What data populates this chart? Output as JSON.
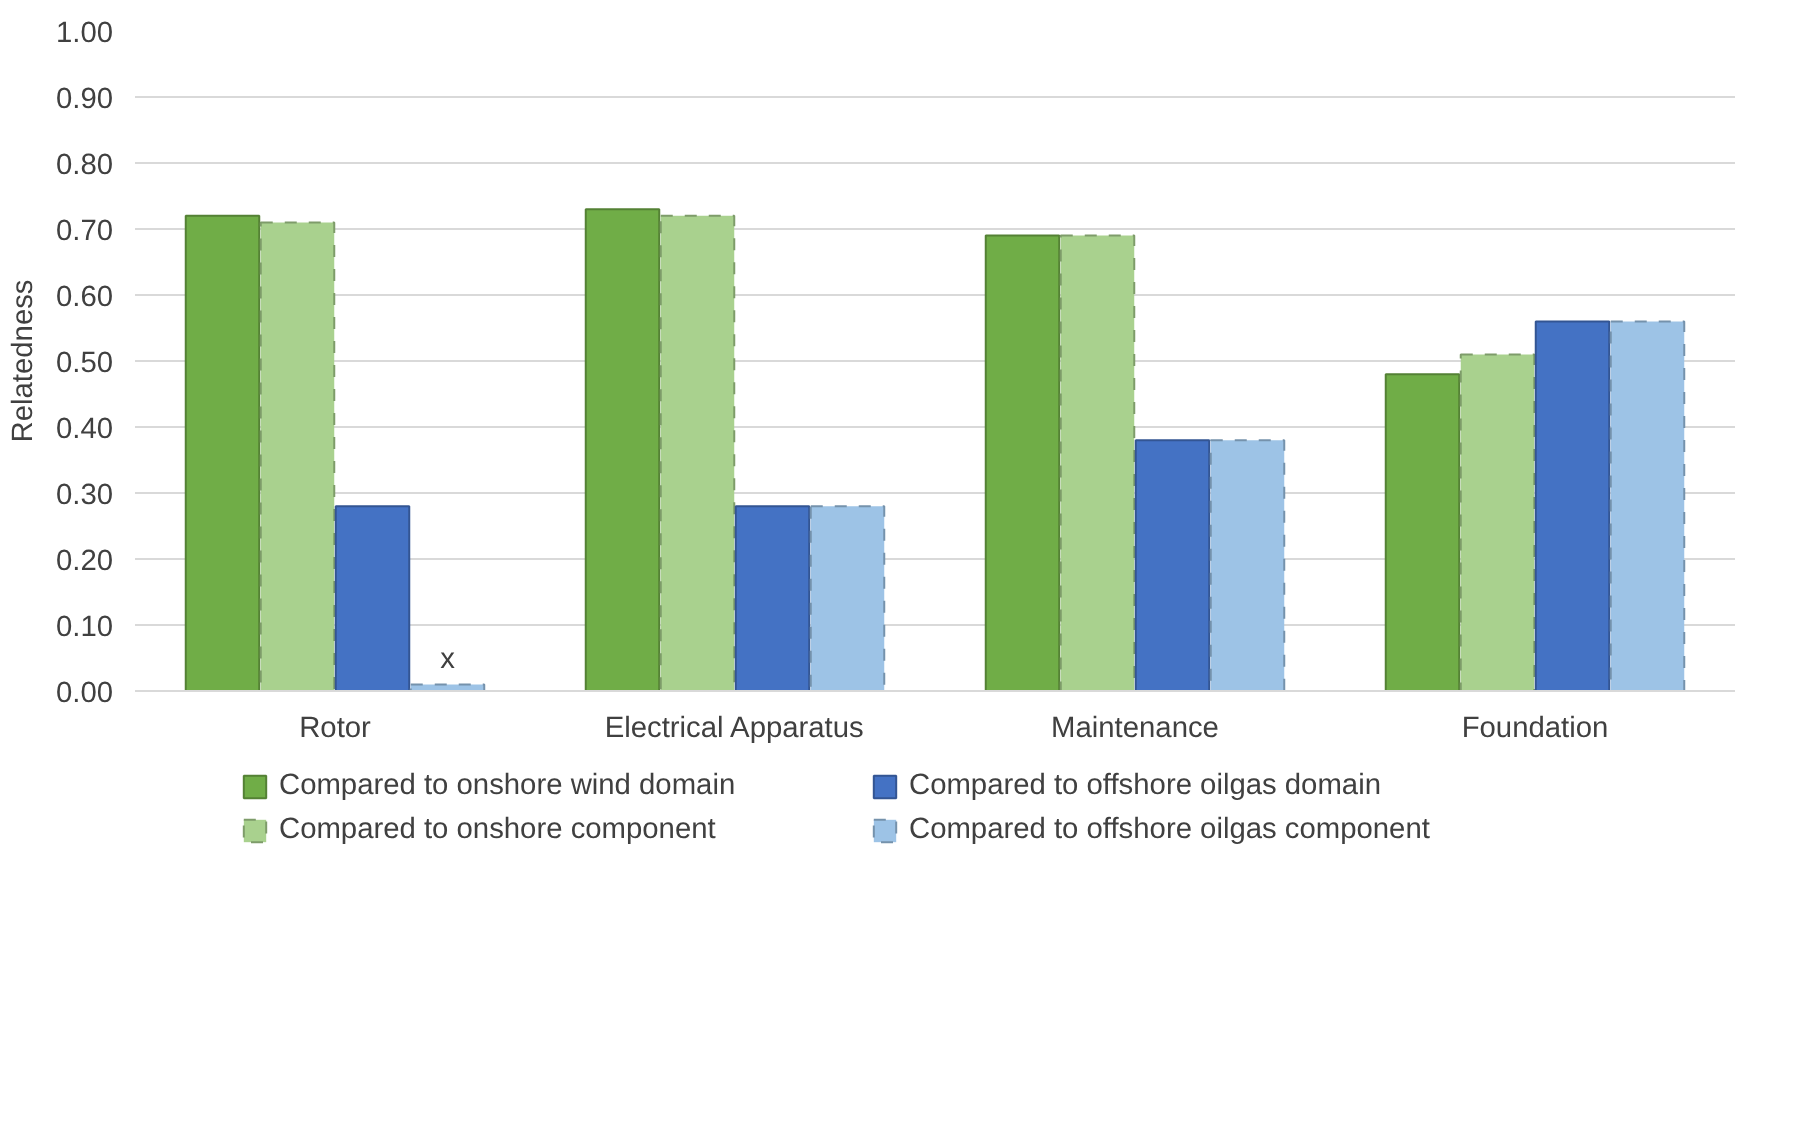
{
  "chart_data": {
    "type": "bar",
    "ylabel": "Relatedness",
    "categories": [
      "Rotor",
      "Electrical Apparatus",
      "Maintenance",
      "Foundation"
    ],
    "series": [
      {
        "name": "Compared to onshore wind domain",
        "color": "#70ad47",
        "values": [
          0.72,
          0.73,
          0.69,
          0.48
        ]
      },
      {
        "name": "Compared to onshore component",
        "color": "#a9d18e",
        "values": [
          0.71,
          0.72,
          0.69,
          0.51
        ],
        "line_style": "dashed"
      },
      {
        "name": "Compared to offshore oilgas domain",
        "color": "#4472c4",
        "values": [
          0.28,
          0.28,
          0.38,
          0.56
        ]
      },
      {
        "name": "Compared to offshore oilgas component",
        "color": "#9dc3e6",
        "values": [
          0.01,
          0.28,
          0.38,
          0.56
        ],
        "line_style": "dashed"
      }
    ],
    "ylim": [
      0,
      1
    ],
    "yticks": [
      {
        "value": 0,
        "label": "0.00"
      },
      {
        "value": 0.1,
        "label": "0.10"
      },
      {
        "value": 0.2,
        "label": "0.20"
      },
      {
        "value": 0.3,
        "label": "0.30"
      },
      {
        "value": 0.4,
        "label": "0.40"
      },
      {
        "value": 0.5,
        "label": "0.50"
      },
      {
        "value": 0.6,
        "label": "0.60"
      },
      {
        "value": 0.7,
        "label": "0.70"
      },
      {
        "value": 0.8,
        "label": "0.80"
      },
      {
        "value": 0.9,
        "label": "0.90"
      },
      {
        "value": 1,
        "label": "1.00"
      }
    ],
    "grid": "y",
    "legend": "bottom",
    "annotations": [
      "x"
    ]
  }
}
